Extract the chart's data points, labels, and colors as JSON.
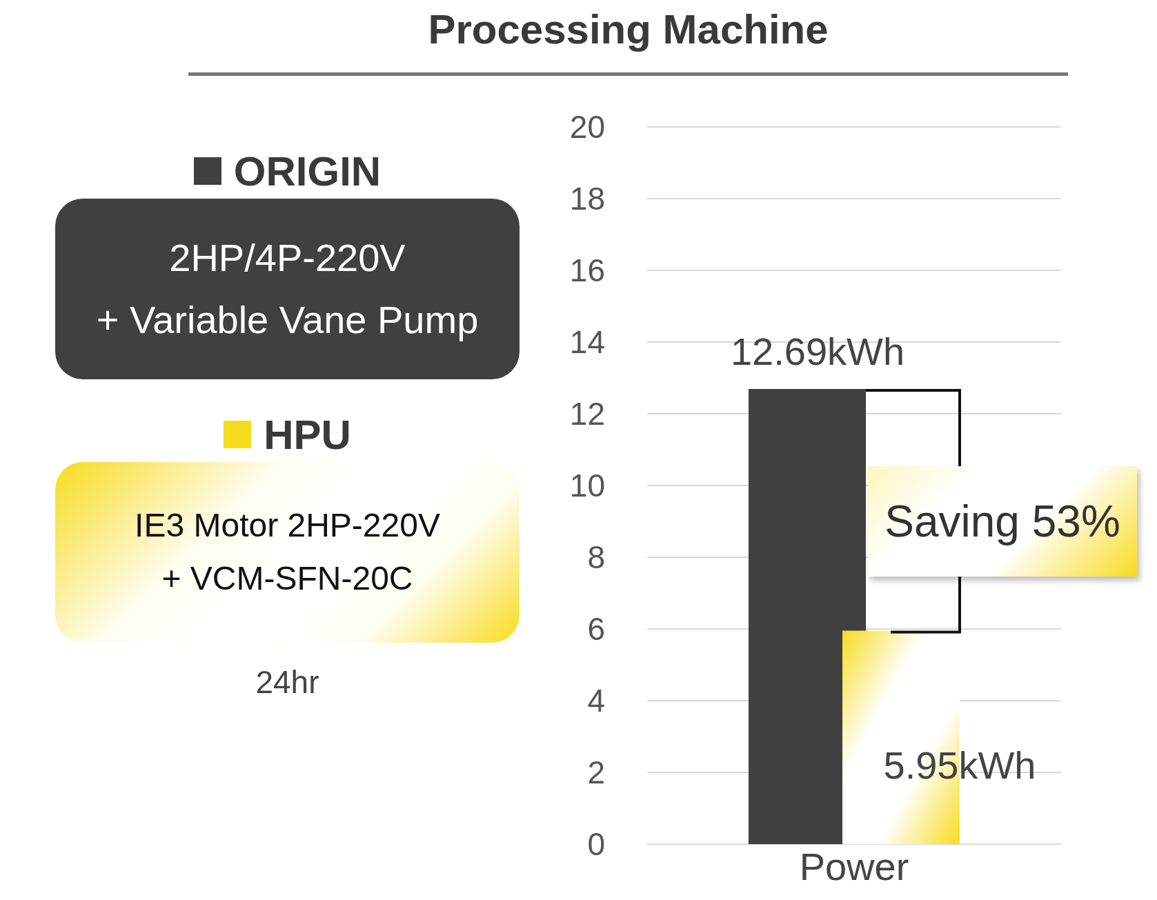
{
  "chart_data": {
    "type": "bar",
    "title": "Processing Machine",
    "categories": [
      "Power"
    ],
    "series": [
      {
        "name": "ORIGIN",
        "color": "#404040",
        "values": [
          12.69
        ],
        "value_labels": [
          "12.69kWh"
        ]
      },
      {
        "name": "HPU",
        "color": "#f7dc1e",
        "values": [
          5.95
        ],
        "value_labels": [
          "5.95kWh"
        ]
      }
    ],
    "ylim": [
      0,
      20
    ],
    "yticks": [
      0,
      2,
      4,
      6,
      8,
      10,
      12,
      14,
      16,
      18,
      20
    ],
    "grid": "y",
    "legend": "left",
    "annotations": [
      "2HP/4P-220V",
      "+ Variable Vane Pump",
      "IE3 Motor 2HP-220V",
      "+ VCM-SFN-20C",
      "24hr",
      "Saving 53%"
    ]
  }
}
